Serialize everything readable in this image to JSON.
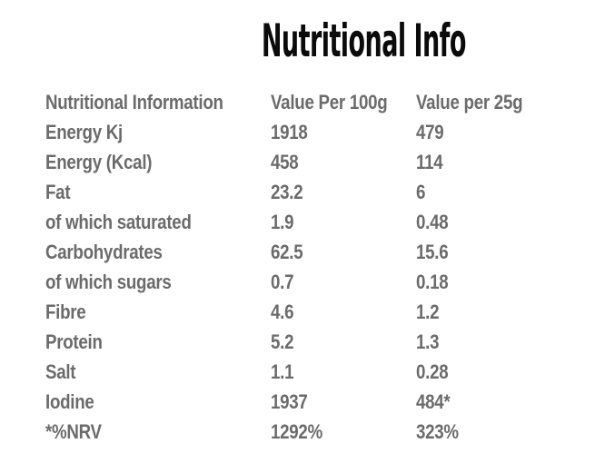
{
  "page": {
    "title": "Nutritional Info",
    "background_color": "#ffffff",
    "title_color": "#0b0b0b",
    "table_text_color": "#6b6b6b"
  },
  "table": {
    "headers": [
      "Nutritional Information",
      "Value Per 100g",
      "Value per 25g"
    ],
    "rows": [
      {
        "label": "Energy Kj",
        "per100g": "1918",
        "per25g": "479"
      },
      {
        "label": "Energy (Kcal)",
        "per100g": "458",
        "per25g": "114"
      },
      {
        "label": "Fat",
        "per100g": "23.2",
        "per25g": "6"
      },
      {
        "label": "of which saturated",
        "per100g": "1.9",
        "per25g": "0.48"
      },
      {
        "label": "Carbohydrates",
        "per100g": "62.5",
        "per25g": "15.6"
      },
      {
        "label": "of which sugars",
        "per100g": "0.7",
        "per25g": "0.18"
      },
      {
        "label": "Fibre",
        "per100g": "4.6",
        "per25g": "1.2"
      },
      {
        "label": "Protein",
        "per100g": "5.2",
        "per25g": "1.3"
      },
      {
        "label": "Salt",
        "per100g": "1.1",
        "per25g": "0.28"
      },
      {
        "label": "Iodine",
        "per100g": "1937",
        "per25g": "484*"
      },
      {
        "label": "*%NRV",
        "per100g": "1292%",
        "per25g": "323%"
      }
    ]
  }
}
